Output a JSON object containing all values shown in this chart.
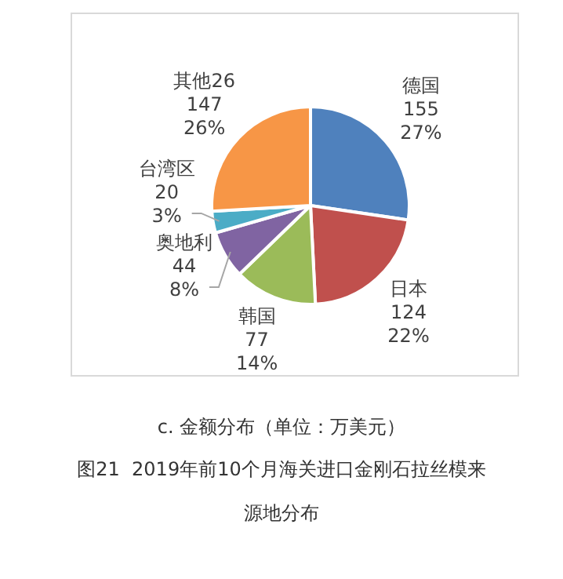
{
  "chart_data": {
    "type": "pie",
    "title": "c. 金额分布（单位：万美元）",
    "categories": [
      "德国",
      "日本",
      "韩国",
      "奥地利",
      "台湾区",
      "其他26"
    ],
    "values": [
      155,
      124,
      77,
      44,
      20,
      147
    ],
    "colors": [
      "#4f81bd",
      "#c0504d",
      "#9bbb59",
      "#8064a2",
      "#4bacc6",
      "#f79646"
    ],
    "value_labels": [
      "155\n27%",
      "124\n22%",
      "77\n14%",
      "44\n8%",
      "20\n3%",
      "147\n26%"
    ],
    "annotations": [
      "图21  2019年前10个月海关进口金刚石拉丝模来源地分布"
    ],
    "legend": false
  }
}
